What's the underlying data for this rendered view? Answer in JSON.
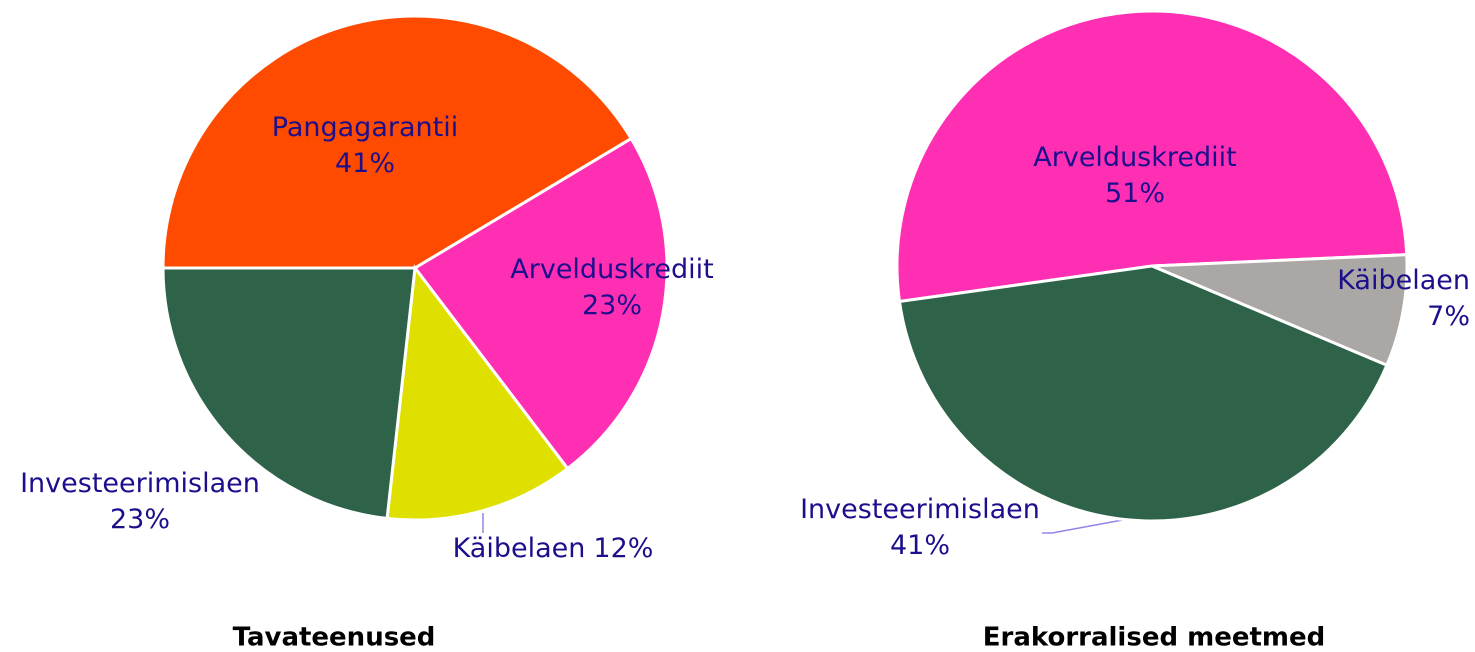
{
  "chart_data": [
    {
      "type": "pie",
      "title": "Tavateenused",
      "categories": [
        "Pangagarantii",
        "Arvelduskrediit",
        "Käibelaen",
        "Investeerimislaen"
      ],
      "values": [
        41,
        23,
        12,
        23
      ],
      "value_labels": [
        "41%",
        "23%",
        "12%",
        "23%"
      ],
      "colors": [
        "#ff4b00",
        "#ff2fb4",
        "#e0e000",
        "#2e634a"
      ]
    },
    {
      "type": "pie",
      "title": "Erakorralised meetmed",
      "categories": [
        "Arvelduskrediit",
        "Käibelaen",
        "Investeerimislaen"
      ],
      "values": [
        51,
        7,
        41
      ],
      "value_labels": [
        "51%",
        "7%",
        "41%"
      ],
      "colors": [
        "#ff2fb4",
        "#aaa7a5",
        "#2e634a"
      ]
    }
  ]
}
